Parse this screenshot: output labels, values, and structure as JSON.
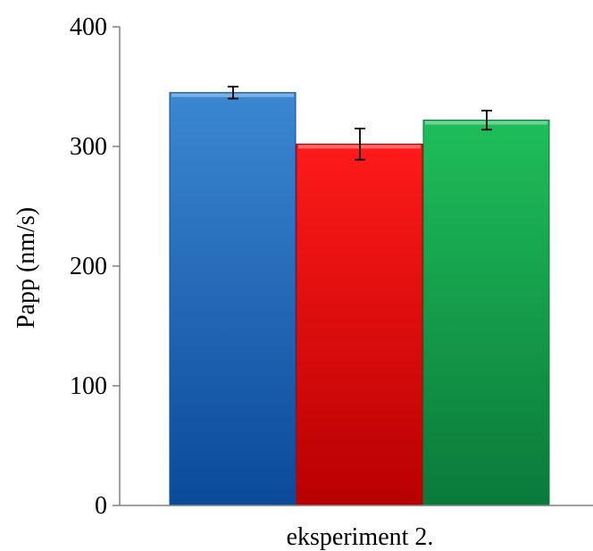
{
  "chart_data": {
    "type": "bar",
    "title": "",
    "xlabel": "",
    "ylabel": "Papp (nm/s)",
    "categories": [
      "eksperiment 2."
    ],
    "ylim": [
      0,
      400
    ],
    "yticks": [
      0,
      100,
      200,
      300,
      400
    ],
    "grid": false,
    "legend": "none",
    "series": [
      {
        "values": [
          345
        ],
        "errors": [
          5
        ],
        "colors": [
          "#3c87d2",
          "#0a4a9a"
        ]
      },
      {
        "values": [
          302
        ],
        "errors": [
          13
        ],
        "colors": [
          "#ff1a1a",
          "#b80000"
        ]
      },
      {
        "values": [
          322
        ],
        "errors": [
          8
        ],
        "colors": [
          "#1fbe5a",
          "#0a7a3a"
        ]
      }
    ]
  }
}
